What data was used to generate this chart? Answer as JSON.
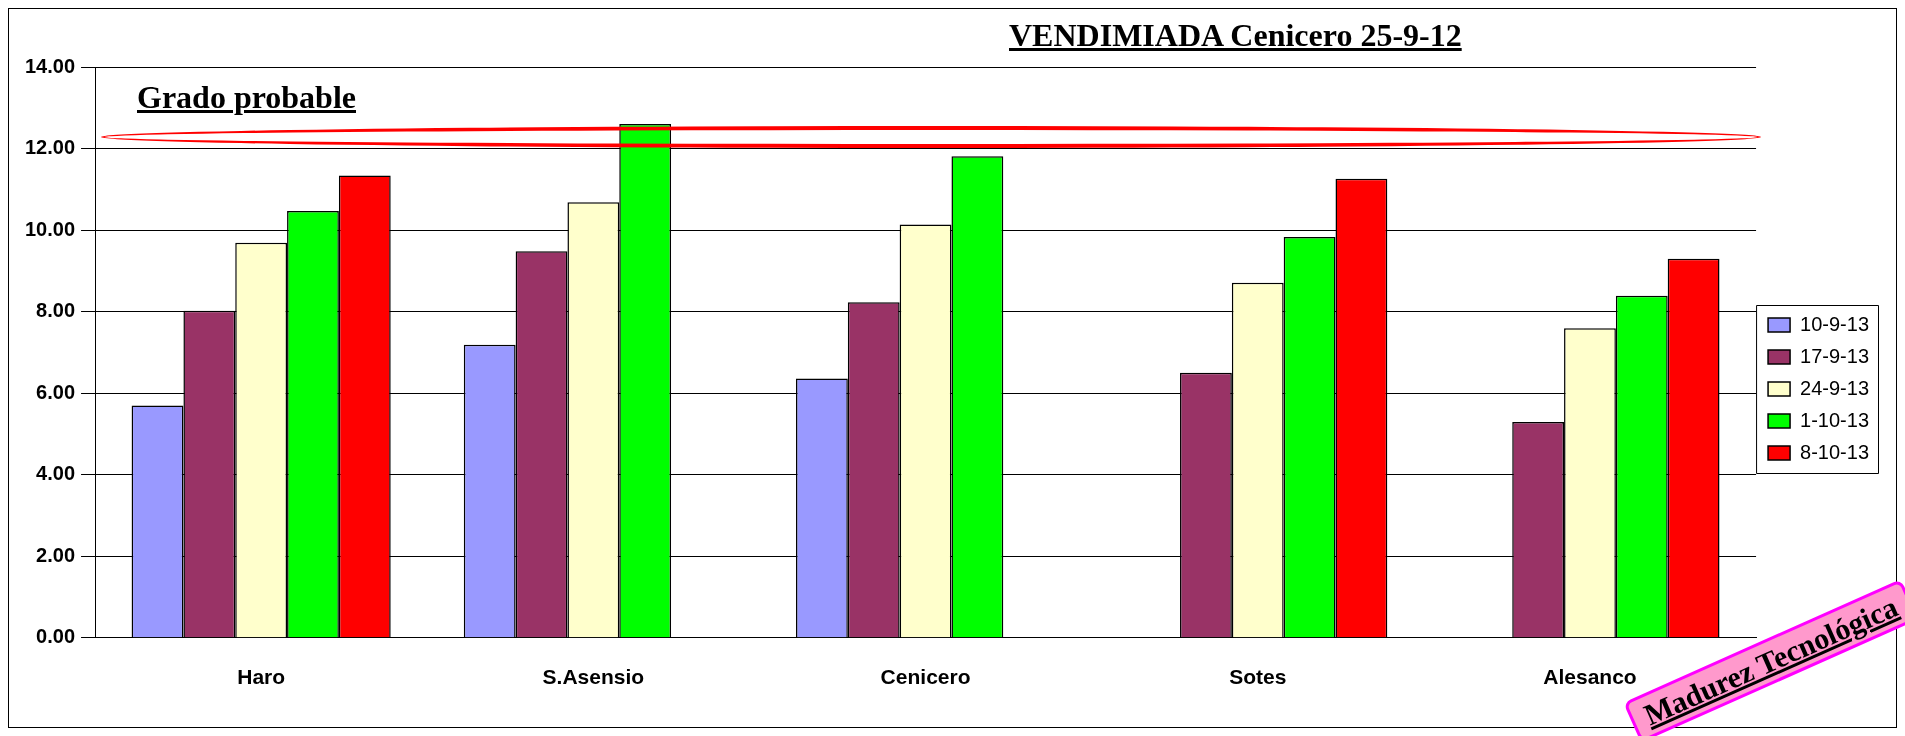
{
  "chart_data": {
    "type": "bar",
    "title": "VENDIMIADA Cenicero 25-9-12",
    "categories": [
      "Haro",
      "S.Asensio",
      "Cenicero",
      "Sotes",
      "Alesanco"
    ],
    "series": [
      {
        "name": "10-9-13",
        "color": "#9999ff",
        "values": [
          5.7,
          7.19,
          6.36,
          null,
          null
        ]
      },
      {
        "name": "17-9-13",
        "color": "#993366",
        "values": [
          8.02,
          9.48,
          8.23,
          6.5,
          5.29
        ]
      },
      {
        "name": "24-9-13",
        "color": "#ffffcc",
        "values": [
          9.69,
          10.68,
          10.14,
          8.71,
          7.59
        ]
      },
      {
        "name": "1-10-13",
        "color": "#00ff00",
        "values": [
          10.47,
          12.6,
          11.81,
          9.83,
          8.39
        ]
      },
      {
        "name": "8-10-13",
        "color": "#ff0000",
        "values": [
          11.34,
          null,
          null,
          11.26,
          9.3
        ]
      }
    ],
    "ylim": [
      0,
      14
    ],
    "yticks": [
      {
        "value": 0,
        "label": "0.00"
      },
      {
        "value": 2,
        "label": "2.00"
      },
      {
        "value": 4,
        "label": "4.00"
      },
      {
        "value": 6,
        "label": "6.00"
      },
      {
        "value": 8,
        "label": "8.00"
      },
      {
        "value": 10,
        "label": "10.00"
      },
      {
        "value": 12,
        "label": "12.00"
      },
      {
        "value": 14,
        "label": "14.00"
      }
    ],
    "grid": "y",
    "legend": "right",
    "annotations": [
      "Grado probable",
      "Madurez Tecnológica"
    ]
  }
}
